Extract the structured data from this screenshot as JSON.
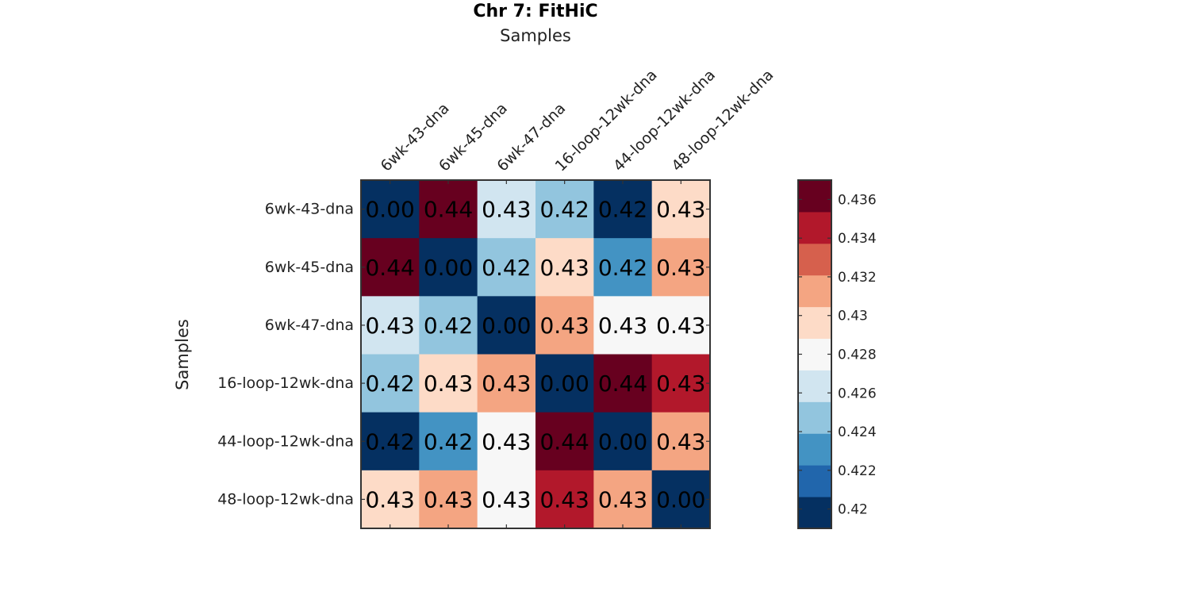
{
  "chart_data": {
    "type": "heatmap",
    "title": "Chr 7: FitHiC",
    "xlabel": "Samples",
    "ylabel": "Samples",
    "categories": [
      "6wk-43-dna",
      "6wk-45-dna",
      "6wk-47-dna",
      "16-loop-12wk-dna",
      "44-loop-12wk-dna",
      "48-loop-12wk-dna"
    ],
    "values": [
      [
        0.0,
        0.4365,
        0.4265,
        0.4245,
        0.4195,
        0.429
      ],
      [
        0.4365,
        0.0,
        0.4245,
        0.429,
        0.4225,
        0.4305
      ],
      [
        0.4265,
        0.4245,
        0.0,
        0.4305,
        0.4285,
        0.4285
      ],
      [
        0.4245,
        0.429,
        0.4305,
        0.0,
        0.4365,
        0.435
      ],
      [
        0.4195,
        0.4225,
        0.4285,
        0.4365,
        0.0,
        0.4305
      ],
      [
        0.429,
        0.4305,
        0.4285,
        0.435,
        0.4305,
        0.0
      ]
    ],
    "cell_labels": [
      [
        "0.00",
        "0.44",
        "0.43",
        "0.42",
        "0.42",
        "0.43"
      ],
      [
        "0.44",
        "0.00",
        "0.42",
        "0.43",
        "0.42",
        "0.43"
      ],
      [
        "0.43",
        "0.42",
        "0.00",
        "0.43",
        "0.43",
        "0.43"
      ],
      [
        "0.42",
        "0.43",
        "0.43",
        "0.00",
        "0.44",
        "0.43"
      ],
      [
        "0.42",
        "0.42",
        "0.43",
        "0.44",
        "0.00",
        "0.43"
      ],
      [
        "0.43",
        "0.43",
        "0.43",
        "0.43",
        "0.43",
        "0.00"
      ]
    ],
    "colorbar": {
      "min": 0.419,
      "max": 0.437,
      "ticks": [
        0.42,
        0.422,
        0.424,
        0.426,
        0.428,
        0.43,
        0.432,
        0.434,
        0.436
      ],
      "tick_labels": [
        "0.42",
        "0.422",
        "0.424",
        "0.426",
        "0.428",
        "0.43",
        "0.432",
        "0.434",
        "0.436"
      ],
      "colors": [
        "#053061",
        "#2166ac",
        "#4393c3",
        "#92c5de",
        "#d1e5f0",
        "#f7f7f7",
        "#fddbc7",
        "#f4a582",
        "#d6604d",
        "#b2182b",
        "#67001f"
      ]
    },
    "grid": false,
    "legend": "colorbar-right"
  }
}
